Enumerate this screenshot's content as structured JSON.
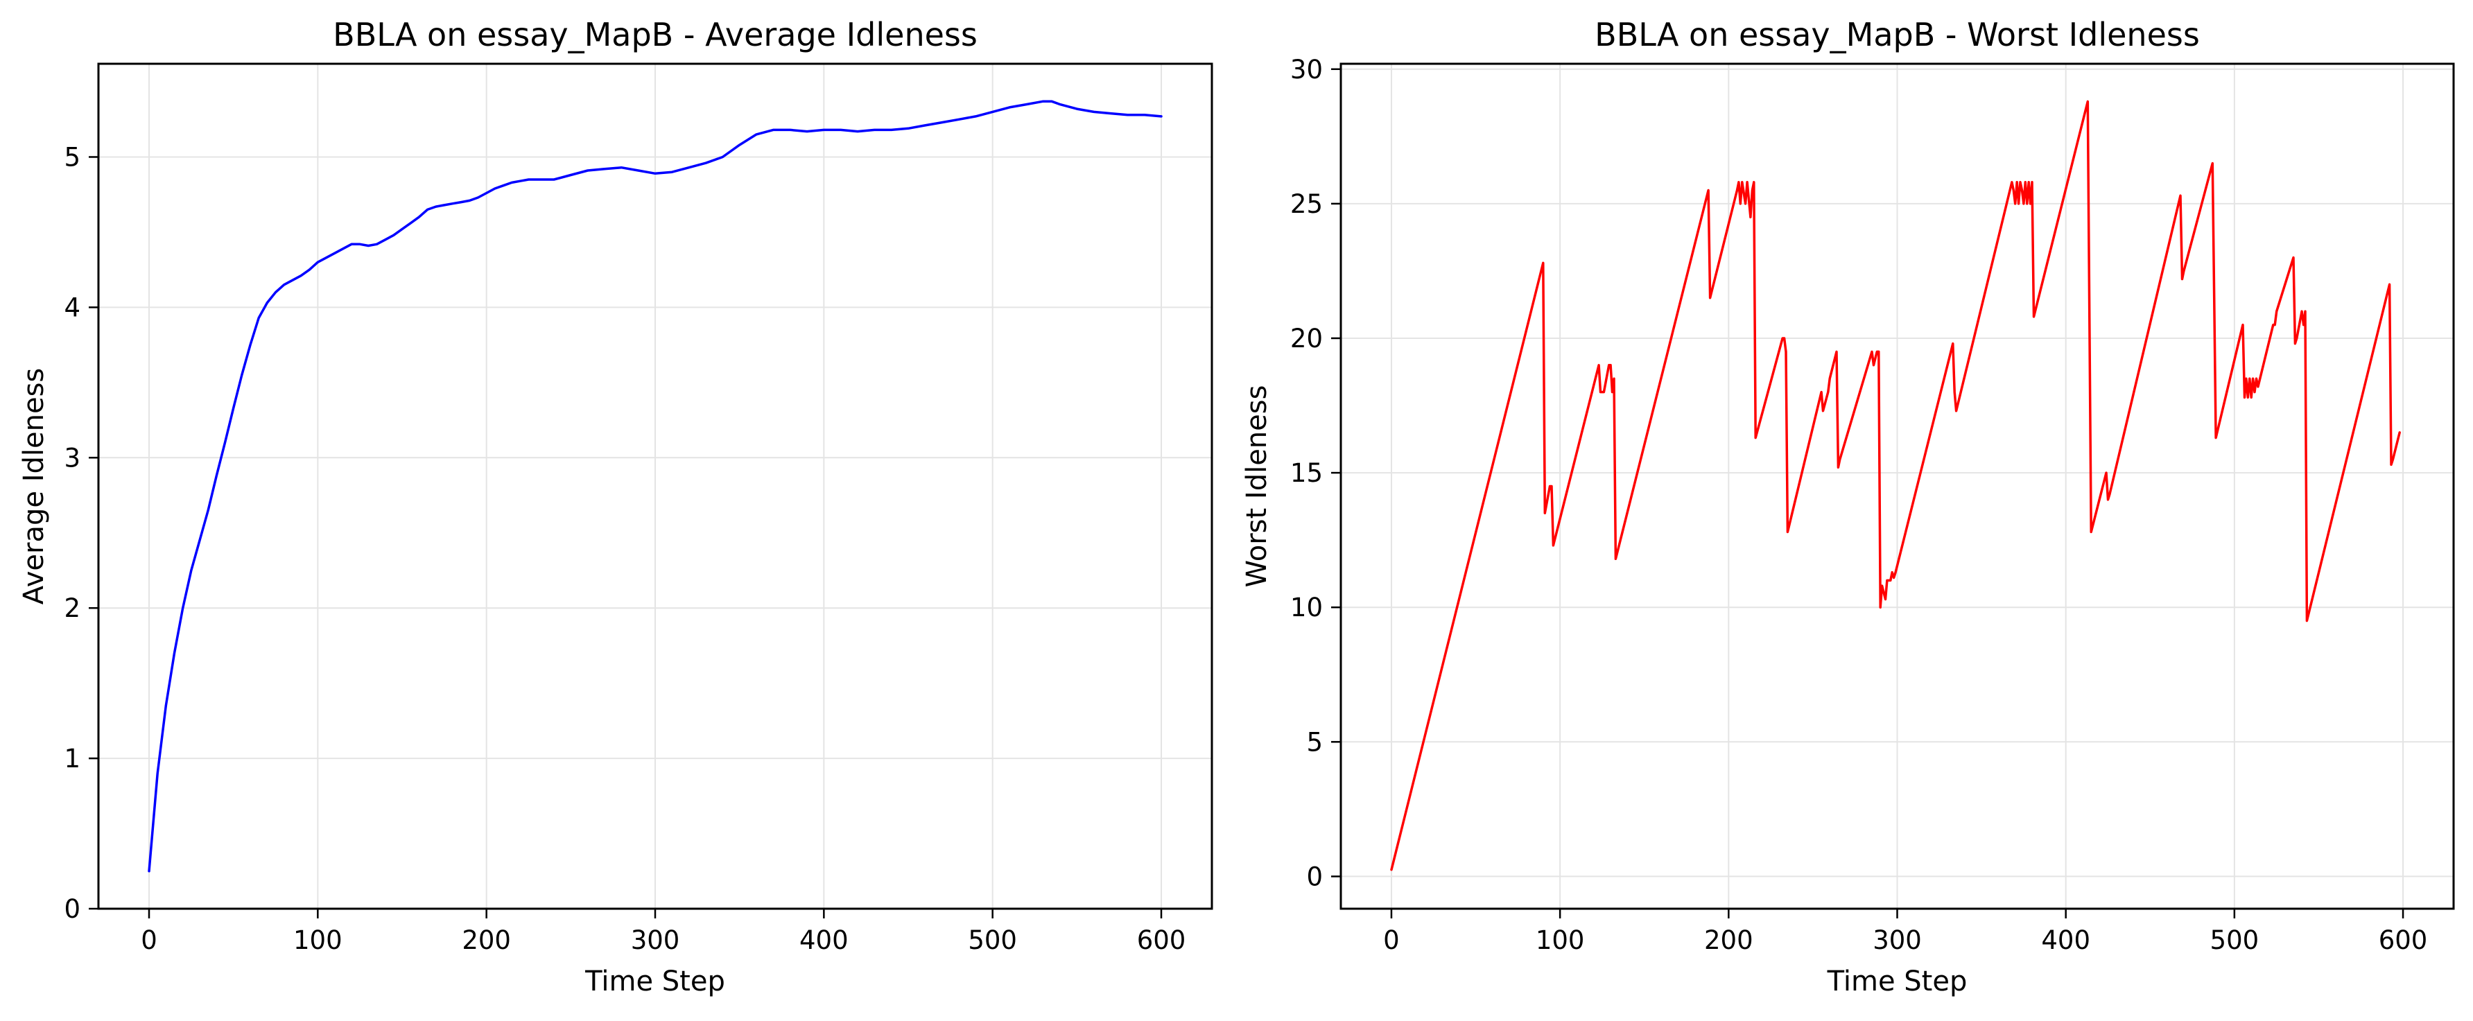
{
  "chart_data": [
    {
      "type": "line",
      "title": "BBLA on essay_MapB - Average Idleness",
      "xlabel": "Time Step",
      "ylabel": "Average Idleness",
      "xlim": [
        -30,
        630
      ],
      "ylim": [
        0,
        5.62
      ],
      "xticks": [
        0,
        100,
        200,
        300,
        400,
        500,
        600
      ],
      "yticks": [
        0,
        1,
        2,
        3,
        4,
        5
      ],
      "grid": true,
      "series": [
        {
          "color": "#0000ff",
          "x": [
            0,
            5,
            10,
            15,
            20,
            25,
            30,
            35,
            40,
            45,
            50,
            55,
            60,
            65,
            70,
            75,
            80,
            85,
            90,
            95,
            100,
            105,
            110,
            115,
            120,
            125,
            130,
            135,
            140,
            145,
            150,
            155,
            160,
            165,
            170,
            175,
            180,
            185,
            190,
            195,
            200,
            205,
            210,
            215,
            220,
            225,
            230,
            240,
            250,
            260,
            270,
            280,
            290,
            300,
            310,
            320,
            330,
            340,
            350,
            360,
            370,
            380,
            390,
            400,
            410,
            420,
            430,
            440,
            450,
            460,
            470,
            480,
            490,
            500,
            510,
            520,
            530,
            535,
            540,
            550,
            560,
            570,
            580,
            590,
            600
          ],
          "y": [
            0.25,
            0.9,
            1.35,
            1.7,
            2.0,
            2.25,
            2.45,
            2.65,
            2.88,
            3.1,
            3.33,
            3.55,
            3.75,
            3.93,
            4.03,
            4.1,
            4.15,
            4.18,
            4.21,
            4.25,
            4.3,
            4.33,
            4.36,
            4.39,
            4.42,
            4.42,
            4.41,
            4.42,
            4.45,
            4.48,
            4.52,
            4.56,
            4.6,
            4.65,
            4.67,
            4.68,
            4.69,
            4.7,
            4.71,
            4.73,
            4.76,
            4.79,
            4.81,
            4.83,
            4.84,
            4.85,
            4.85,
            4.85,
            4.88,
            4.91,
            4.92,
            4.93,
            4.91,
            4.89,
            4.9,
            4.93,
            4.96,
            5.0,
            5.08,
            5.15,
            5.18,
            5.18,
            5.17,
            5.18,
            5.18,
            5.17,
            5.18,
            5.18,
            5.19,
            5.21,
            5.23,
            5.25,
            5.27,
            5.3,
            5.33,
            5.35,
            5.37,
            5.37,
            5.35,
            5.32,
            5.3,
            5.29,
            5.28,
            5.28,
            5.27
          ]
        }
      ]
    },
    {
      "type": "line",
      "title": "BBLA on essay_MapB - Worst Idleness",
      "xlabel": "Time Step",
      "ylabel": "Worst Idleness",
      "xlim": [
        -30,
        630
      ],
      "ylim": [
        -1.2,
        30.2
      ],
      "xticks": [
        0,
        100,
        200,
        300,
        400,
        500,
        600
      ],
      "yticks": [
        0,
        5,
        10,
        15,
        20,
        25,
        30
      ],
      "grid": true,
      "series": [
        {
          "color": "#ff0000",
          "x": [
            0,
            90,
            91,
            94,
            95,
            96,
            123,
            124,
            126,
            129,
            130,
            131,
            132,
            133,
            188,
            189,
            205,
            206,
            207,
            208,
            210,
            211,
            213,
            214,
            215,
            216,
            232,
            233,
            234,
            235,
            255,
            256,
            259,
            260,
            264,
            265,
            266,
            285,
            286,
            288,
            289,
            290,
            291,
            293,
            294,
            296,
            297,
            298,
            299,
            333,
            334,
            335,
            368,
            369,
            370,
            371,
            372,
            373,
            374,
            375,
            376,
            377,
            378,
            379,
            380,
            381,
            413,
            414,
            415,
            424,
            425,
            426,
            468,
            469,
            470,
            487,
            488,
            489,
            505,
            506,
            507,
            508,
            509,
            510,
            511,
            512,
            513,
            514,
            523,
            524,
            525,
            535,
            536,
            537,
            540,
            541,
            542,
            543,
            592,
            593,
            594,
            598
          ],
          "y": [
            0.25,
            22.8,
            13.5,
            14.5,
            14.5,
            12.3,
            19.0,
            18.0,
            18.0,
            19.0,
            19.0,
            18.0,
            18.5,
            11.8,
            25.5,
            21.5,
            25.5,
            25.8,
            25.0,
            25.8,
            25.0,
            25.8,
            24.5,
            25.5,
            25.8,
            16.3,
            20.0,
            20.0,
            19.5,
            12.8,
            18.0,
            17.3,
            18.0,
            18.5,
            19.5,
            15.2,
            15.5,
            19.5,
            19.0,
            19.5,
            19.5,
            10.0,
            10.8,
            10.3,
            11.0,
            11.0,
            11.3,
            11.1,
            11.3,
            19.8,
            18.0,
            17.3,
            25.8,
            25.5,
            25.0,
            25.8,
            25.0,
            25.8,
            25.5,
            25.0,
            25.8,
            25.0,
            25.8,
            25.0,
            25.8,
            20.8,
            28.8,
            21.0,
            12.8,
            15.0,
            14.0,
            14.2,
            25.3,
            22.2,
            22.5,
            26.5,
            21.5,
            16.3,
            20.5,
            17.8,
            18.5,
            17.8,
            18.5,
            17.8,
            18.5,
            18.0,
            18.5,
            18.2,
            20.5,
            20.5,
            21.0,
            23.0,
            19.8,
            20.0,
            21.0,
            20.5,
            21.0,
            9.5,
            22.0,
            15.3,
            15.5,
            16.5
          ]
        }
      ]
    }
  ]
}
